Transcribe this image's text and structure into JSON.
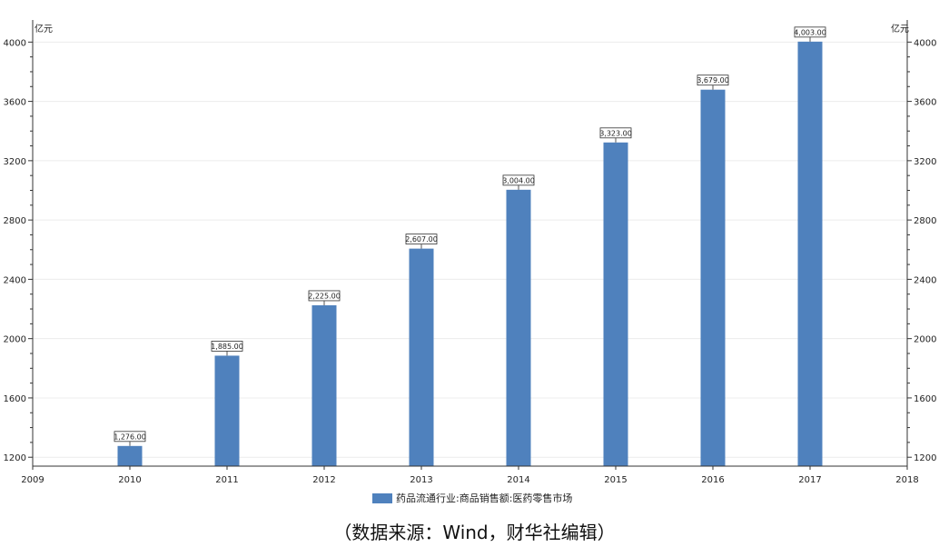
{
  "chart_data": {
    "type": "bar",
    "categories": [
      "2010",
      "2011",
      "2012",
      "2013",
      "2014",
      "2015",
      "2016",
      "2017"
    ],
    "series": [
      {
        "name": "药品流通行业:商品销售额:医药零售市场",
        "values": [
          1276,
          1885,
          2225,
          2607,
          3004,
          3323,
          3679,
          4003
        ],
        "labels": [
          "1,276.00",
          "1,885.00",
          "2,225.00",
          "2,607.00",
          "3,004.00",
          "3,323.00",
          "3,679.00",
          "4,003.00"
        ],
        "color": "#4f81bd"
      }
    ],
    "x_ticks": [
      "2009",
      "2010",
      "2011",
      "2012",
      "2013",
      "2014",
      "2015",
      "2016",
      "2017",
      "2018"
    ],
    "xlim": [
      2009,
      2018
    ],
    "y_ticks": [
      1200,
      1600,
      2000,
      2400,
      2800,
      3200,
      3600,
      4000
    ],
    "ylim": [
      1140,
      4100
    ],
    "left_unit": "亿元",
    "right_unit": "亿元",
    "grid": true,
    "legend_position": "bottom"
  },
  "footer": {
    "source": "（数据来源：Wind，财华社编辑）"
  }
}
